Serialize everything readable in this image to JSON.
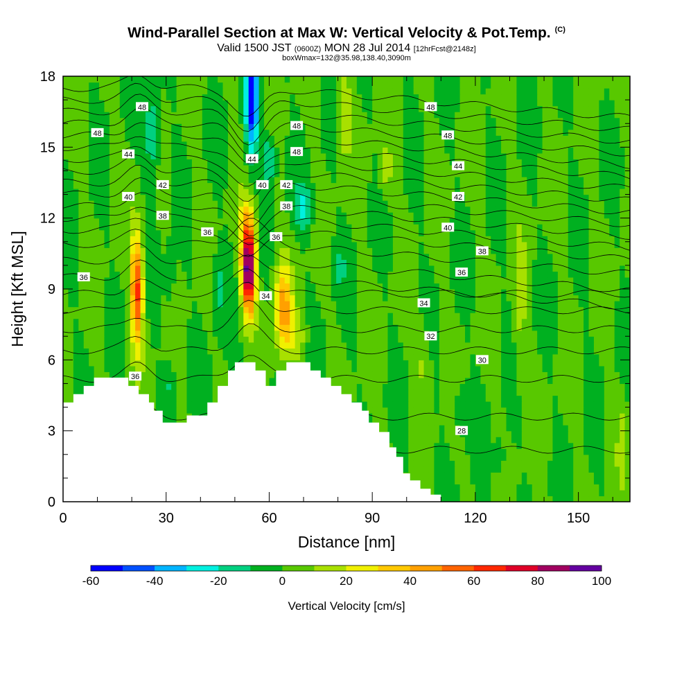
{
  "title": "Wind-Parallel Section at Max W: Vertical Velocity & Pot.Temp.",
  "title_mark": "(C)",
  "subtitle_main": "Valid 1500 JST",
  "subtitle_utc": "(0600Z)",
  "subtitle_date": "MON 28 Jul 2014",
  "subtitle_fcst": "[12hrFcst@2148z]",
  "subtitle2": "boxWmax=132@35.98,138.40,3090m",
  "chart_data": {
    "type": "heatmap",
    "xlabel": "Distance [nm]",
    "ylabel": "Height [Kft MSL]",
    "xlim": [
      0,
      165
    ],
    "ylim": [
      0,
      18
    ],
    "x_ticks": [
      "0",
      "30",
      "60",
      "90",
      "120",
      "150"
    ],
    "y_ticks": [
      "0",
      "3",
      "6",
      "9",
      "12",
      "15",
      "18"
    ],
    "colorbar": {
      "title": "Vertical Velocity [cm/s]",
      "min": -60,
      "max": 100,
      "step": 10,
      "tick_labels": [
        "-60",
        "-40",
        "-20",
        "0",
        "20",
        "40",
        "60",
        "80",
        "100"
      ],
      "colors": [
        "#0000ff",
        "#0050ff",
        "#00b4ff",
        "#00f0e0",
        "#00d080",
        "#00b020",
        "#58c800",
        "#a8e000",
        "#f0f000",
        "#ffc800",
        "#ffa000",
        "#ff6400",
        "#ff2800",
        "#e00028",
        "#a00060",
        "#6400a0"
      ]
    },
    "terrain": [
      [
        0,
        4.2
      ],
      [
        3,
        4.2
      ],
      [
        3,
        4.55
      ],
      [
        6,
        4.55
      ],
      [
        6,
        4.9
      ],
      [
        9,
        4.9
      ],
      [
        9,
        5.25
      ],
      [
        19,
        5.25
      ],
      [
        19,
        4.9
      ],
      [
        22,
        4.9
      ],
      [
        22,
        4.55
      ],
      [
        25,
        4.55
      ],
      [
        25,
        4.2
      ],
      [
        26.5,
        4.2
      ],
      [
        26.5,
        3.85
      ],
      [
        29,
        3.85
      ],
      [
        29,
        3.35
      ],
      [
        36,
        3.35
      ],
      [
        36,
        3.65
      ],
      [
        42,
        3.65
      ],
      [
        42,
        4.2
      ],
      [
        45,
        4.2
      ],
      [
        45,
        4.9
      ],
      [
        48,
        4.9
      ],
      [
        48,
        5.55
      ],
      [
        50,
        5.55
      ],
      [
        50,
        5.9
      ],
      [
        56,
        5.9
      ],
      [
        56,
        5.55
      ],
      [
        59,
        5.55
      ],
      [
        59,
        4.9
      ],
      [
        62,
        4.9
      ],
      [
        62,
        5.55
      ],
      [
        65,
        5.55
      ],
      [
        65,
        5.9
      ],
      [
        72,
        5.9
      ],
      [
        72,
        5.55
      ],
      [
        75,
        5.55
      ],
      [
        75,
        5.25
      ],
      [
        78,
        5.25
      ],
      [
        78,
        4.9
      ],
      [
        81,
        4.9
      ],
      [
        81,
        4.55
      ],
      [
        84,
        4.55
      ],
      [
        84,
        4.2
      ],
      [
        87,
        4.2
      ],
      [
        87,
        3.85
      ],
      [
        89,
        3.85
      ],
      [
        89,
        3.35
      ],
      [
        92,
        3.35
      ],
      [
        92,
        2.95
      ],
      [
        95,
        2.95
      ],
      [
        95,
        2.3
      ],
      [
        97,
        2.3
      ],
      [
        97,
        1.9
      ],
      [
        99,
        1.9
      ],
      [
        99,
        1.2
      ],
      [
        101,
        1.2
      ],
      [
        101,
        0.9
      ],
      [
        104,
        0.9
      ],
      [
        104,
        0.55
      ],
      [
        107,
        0.55
      ],
      [
        107,
        0.3
      ],
      [
        110,
        0.3
      ],
      [
        110,
        0
      ]
    ],
    "theta_labels": [
      {
        "v": "48",
        "x": 23,
        "y": 16.7
      },
      {
        "v": "48",
        "x": 10,
        "y": 15.6
      },
      {
        "v": "44",
        "x": 19,
        "y": 14.7
      },
      {
        "v": "42",
        "x": 29,
        "y": 13.4
      },
      {
        "v": "40",
        "x": 19,
        "y": 12.9
      },
      {
        "v": "38",
        "x": 29,
        "y": 12.1
      },
      {
        "v": "36",
        "x": 42,
        "y": 11.4
      },
      {
        "v": "36",
        "x": 6,
        "y": 9.5
      },
      {
        "v": "36",
        "x": 21,
        "y": 5.3
      },
      {
        "v": "48",
        "x": 68,
        "y": 15.9
      },
      {
        "v": "48",
        "x": 68,
        "y": 14.8
      },
      {
        "v": "44",
        "x": 55,
        "y": 14.5
      },
      {
        "v": "40",
        "x": 58,
        "y": 13.4
      },
      {
        "v": "42",
        "x": 65,
        "y": 13.4
      },
      {
        "v": "38",
        "x": 65,
        "y": 12.5
      },
      {
        "v": "36",
        "x": 62,
        "y": 11.2
      },
      {
        "v": "34",
        "x": 59,
        "y": 8.7
      },
      {
        "v": "48",
        "x": 107,
        "y": 16.7
      },
      {
        "v": "48",
        "x": 112,
        "y": 15.5
      },
      {
        "v": "44",
        "x": 115,
        "y": 14.2
      },
      {
        "v": "42",
        "x": 115,
        "y": 12.9
      },
      {
        "v": "40",
        "x": 112,
        "y": 11.6
      },
      {
        "v": "38",
        "x": 122,
        "y": 10.6
      },
      {
        "v": "36",
        "x": 116,
        "y": 9.7
      },
      {
        "v": "34",
        "x": 105,
        "y": 8.4
      },
      {
        "v": "32",
        "x": 107,
        "y": 7.0
      },
      {
        "v": "30",
        "x": 122,
        "y": 6.0
      },
      {
        "v": "28",
        "x": 116,
        "y": 3.0
      }
    ]
  }
}
